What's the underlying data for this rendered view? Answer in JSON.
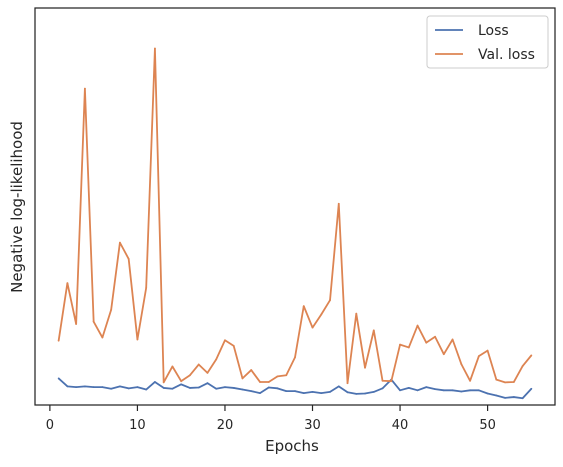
{
  "chart_data": {
    "type": "line",
    "title": "",
    "xlabel": "Epochs",
    "ylabel": "Negative log-likelihood",
    "xlim": [
      -1.7,
      57.7
    ],
    "ylim": [
      0.0,
      1.0
    ],
    "y_ticks_shown": false,
    "x_ticks": [
      0,
      10,
      20,
      30,
      40,
      50
    ],
    "x_tick_labels": [
      "0",
      "10",
      "20",
      "30",
      "40",
      "50"
    ],
    "grid": false,
    "legend_position": "top-right",
    "series": [
      {
        "name": "Loss",
        "color": "#4c72b0",
        "x": [
          1,
          2,
          3,
          4,
          5,
          6,
          7,
          8,
          9,
          10,
          11,
          12,
          13,
          14,
          15,
          16,
          17,
          18,
          19,
          20,
          21,
          22,
          23,
          24,
          25,
          26,
          27,
          28,
          29,
          30,
          31,
          32,
          33,
          34,
          35,
          36,
          37,
          38,
          39,
          40,
          41,
          42,
          43,
          44,
          45,
          46,
          47,
          48,
          49,
          50,
          51,
          52,
          53,
          54,
          55
        ],
        "values": [
          0.067,
          0.047,
          0.045,
          0.047,
          0.045,
          0.045,
          0.041,
          0.047,
          0.042,
          0.045,
          0.039,
          0.058,
          0.043,
          0.041,
          0.052,
          0.043,
          0.044,
          0.055,
          0.041,
          0.045,
          0.043,
          0.039,
          0.035,
          0.03,
          0.044,
          0.042,
          0.035,
          0.035,
          0.03,
          0.033,
          0.03,
          0.033,
          0.047,
          0.032,
          0.028,
          0.029,
          0.033,
          0.042,
          0.064,
          0.037,
          0.043,
          0.037,
          0.045,
          0.04,
          0.037,
          0.037,
          0.034,
          0.037,
          0.037,
          0.029,
          0.024,
          0.018,
          0.02,
          0.017,
          0.041
        ]
      },
      {
        "name": "Val. loss",
        "color": "#dd8452",
        "x": [
          1,
          2,
          3,
          4,
          5,
          6,
          7,
          8,
          9,
          10,
          11,
          12,
          13,
          14,
          15,
          16,
          17,
          18,
          19,
          20,
          21,
          22,
          23,
          24,
          25,
          26,
          27,
          28,
          29,
          30,
          31,
          32,
          33,
          34,
          35,
          36,
          37,
          38,
          39,
          40,
          41,
          42,
          43,
          44,
          45,
          46,
          47,
          48,
          49,
          50,
          51,
          52,
          53,
          54,
          55
        ],
        "values": [
          0.162,
          0.307,
          0.204,
          0.797,
          0.21,
          0.17,
          0.24,
          0.409,
          0.368,
          0.165,
          0.295,
          0.898,
          0.057,
          0.097,
          0.06,
          0.075,
          0.102,
          0.081,
          0.115,
          0.163,
          0.149,
          0.067,
          0.088,
          0.058,
          0.058,
          0.072,
          0.075,
          0.12,
          0.249,
          0.195,
          0.228,
          0.264,
          0.507,
          0.055,
          0.23,
          0.094,
          0.188,
          0.061,
          0.06,
          0.152,
          0.145,
          0.2,
          0.157,
          0.172,
          0.128,
          0.165,
          0.103,
          0.061,
          0.123,
          0.137,
          0.064,
          0.057,
          0.058,
          0.098,
          0.125
        ]
      }
    ]
  }
}
